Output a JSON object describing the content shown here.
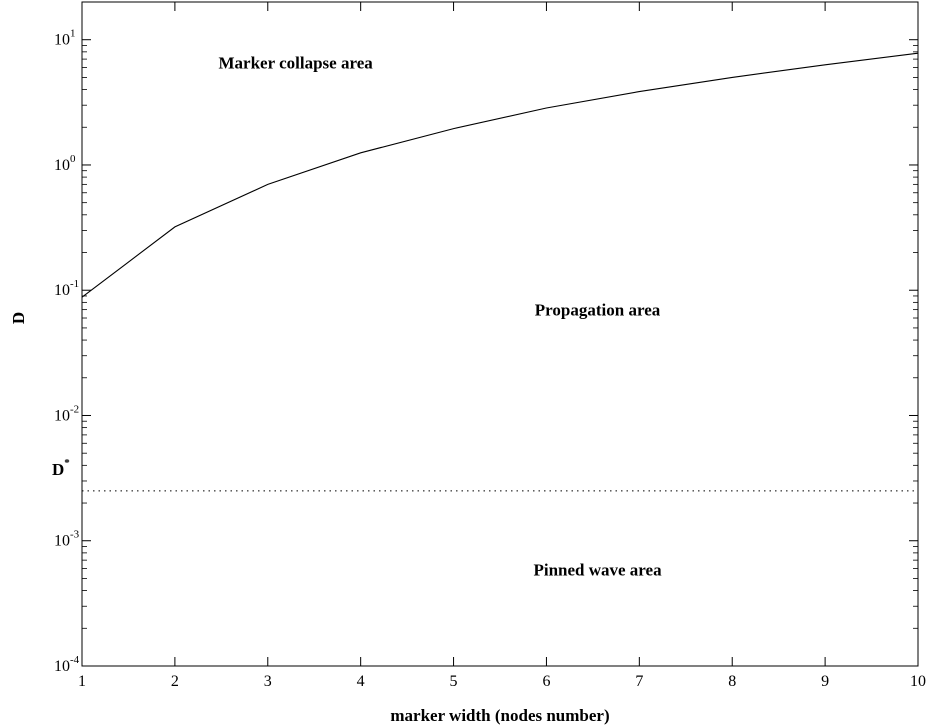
{
  "chart_data": {
    "type": "line",
    "xlabel": "marker width (nodes number)",
    "ylabel": "D",
    "xlim": [
      1,
      10
    ],
    "ylim": [
      0.0001,
      20
    ],
    "yscale": "log",
    "grid": false,
    "x_ticks": [
      1,
      2,
      3,
      4,
      5,
      6,
      7,
      8,
      9,
      10
    ],
    "y_ticks": [
      {
        "value": 0.0001,
        "base": "10",
        "exp": "-4"
      },
      {
        "value": 0.001,
        "base": "10",
        "exp": "-3"
      },
      {
        "value": 0.01,
        "base": "10",
        "exp": "-2"
      },
      {
        "value": 0.1,
        "base": "10",
        "exp": "-1"
      },
      {
        "value": 1,
        "base": "10",
        "exp": "0"
      },
      {
        "value": 10,
        "base": "10",
        "exp": "1"
      }
    ],
    "series": [
      {
        "style": "solid",
        "x": [
          1,
          2,
          3,
          4,
          5,
          6,
          7,
          8,
          9,
          10
        ],
        "y": [
          0.088,
          0.32,
          0.7,
          1.25,
          1.95,
          2.85,
          3.85,
          5.0,
          6.3,
          7.8
        ]
      }
    ],
    "reference_line": {
      "label": "D",
      "label_sup": "*",
      "value": 0.0025,
      "style": "dotted"
    },
    "annotations": [
      {
        "text": "Marker collapse area",
        "x": 3.3,
        "y": 5.9
      },
      {
        "text": "Propagation area",
        "x": 6.55,
        "y": 0.063
      },
      {
        "text": "Pinned wave area",
        "x": 6.55,
        "y": 0.00053
      }
    ]
  }
}
